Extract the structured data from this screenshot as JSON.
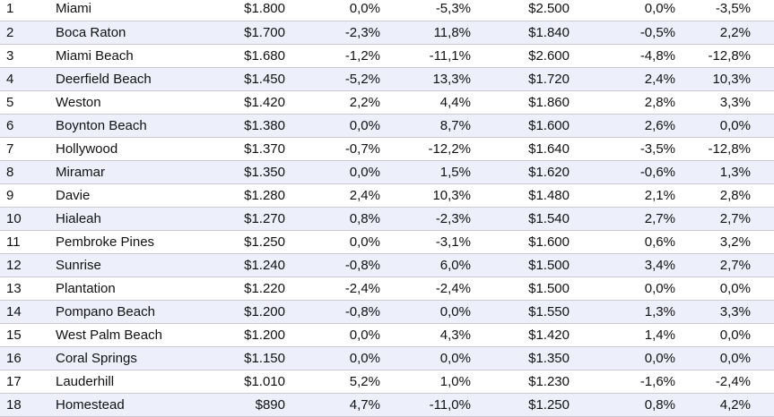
{
  "table": {
    "rows": [
      [
        "1",
        "Miami",
        "$1.800",
        "0,0%",
        "-5,3%",
        "$2.500",
        "0,0%",
        "-3,5%"
      ],
      [
        "2",
        "Boca Raton",
        "$1.700",
        "-2,3%",
        "11,8%",
        "$1.840",
        "-0,5%",
        "2,2%"
      ],
      [
        "3",
        "Miami Beach",
        "$1.680",
        "-1,2%",
        "-11,1%",
        "$2.600",
        "-4,8%",
        "-12,8%"
      ],
      [
        "4",
        "Deerfield Beach",
        "$1.450",
        "-5,2%",
        "13,3%",
        "$1.720",
        "2,4%",
        "10,3%"
      ],
      [
        "5",
        "Weston",
        "$1.420",
        "2,2%",
        "4,4%",
        "$1.860",
        "2,8%",
        "3,3%"
      ],
      [
        "6",
        "Boynton Beach",
        "$1.380",
        "0,0%",
        "8,7%",
        "$1.600",
        "2,6%",
        "0,0%"
      ],
      [
        "7",
        "Hollywood",
        "$1.370",
        "-0,7%",
        "-12,2%",
        "$1.640",
        "-3,5%",
        "-12,8%"
      ],
      [
        "8",
        "Miramar",
        "$1.350",
        "0,0%",
        "1,5%",
        "$1.620",
        "-0,6%",
        "1,3%"
      ],
      [
        "9",
        "Davie",
        "$1.280",
        "2,4%",
        "10,3%",
        "$1.480",
        "2,1%",
        "2,8%"
      ],
      [
        "10",
        "Hialeah",
        "$1.270",
        "0,8%",
        "-2,3%",
        "$1.540",
        "2,7%",
        "2,7%"
      ],
      [
        "11",
        "Pembroke Pines",
        "$1.250",
        "0,0%",
        "-3,1%",
        "$1.600",
        "0,6%",
        "3,2%"
      ],
      [
        "12",
        "Sunrise",
        "$1.240",
        "-0,8%",
        "6,0%",
        "$1.500",
        "3,4%",
        "2,7%"
      ],
      [
        "13",
        "Plantation",
        "$1.220",
        "-2,4%",
        "-2,4%",
        "$1.500",
        "0,0%",
        "0,0%"
      ],
      [
        "14",
        "Pompano Beach",
        "$1.200",
        "-0,8%",
        "0,0%",
        "$1.550",
        "1,3%",
        "3,3%"
      ],
      [
        "15",
        "West Palm Beach",
        "$1.200",
        "0,0%",
        "4,3%",
        "$1.420",
        "1,4%",
        "0,0%"
      ],
      [
        "16",
        "Coral Springs",
        "$1.150",
        "0,0%",
        "0,0%",
        "$1.350",
        "0,0%",
        "0,0%"
      ],
      [
        "17",
        "Lauderhill",
        "$1.010",
        "5,2%",
        "1,0%",
        "$1.230",
        "-1,6%",
        "-2,4%"
      ],
      [
        "18",
        "Homestead",
        "$890",
        "4,7%",
        "-11,0%",
        "$1.250",
        "0,8%",
        "4,2%"
      ]
    ]
  }
}
